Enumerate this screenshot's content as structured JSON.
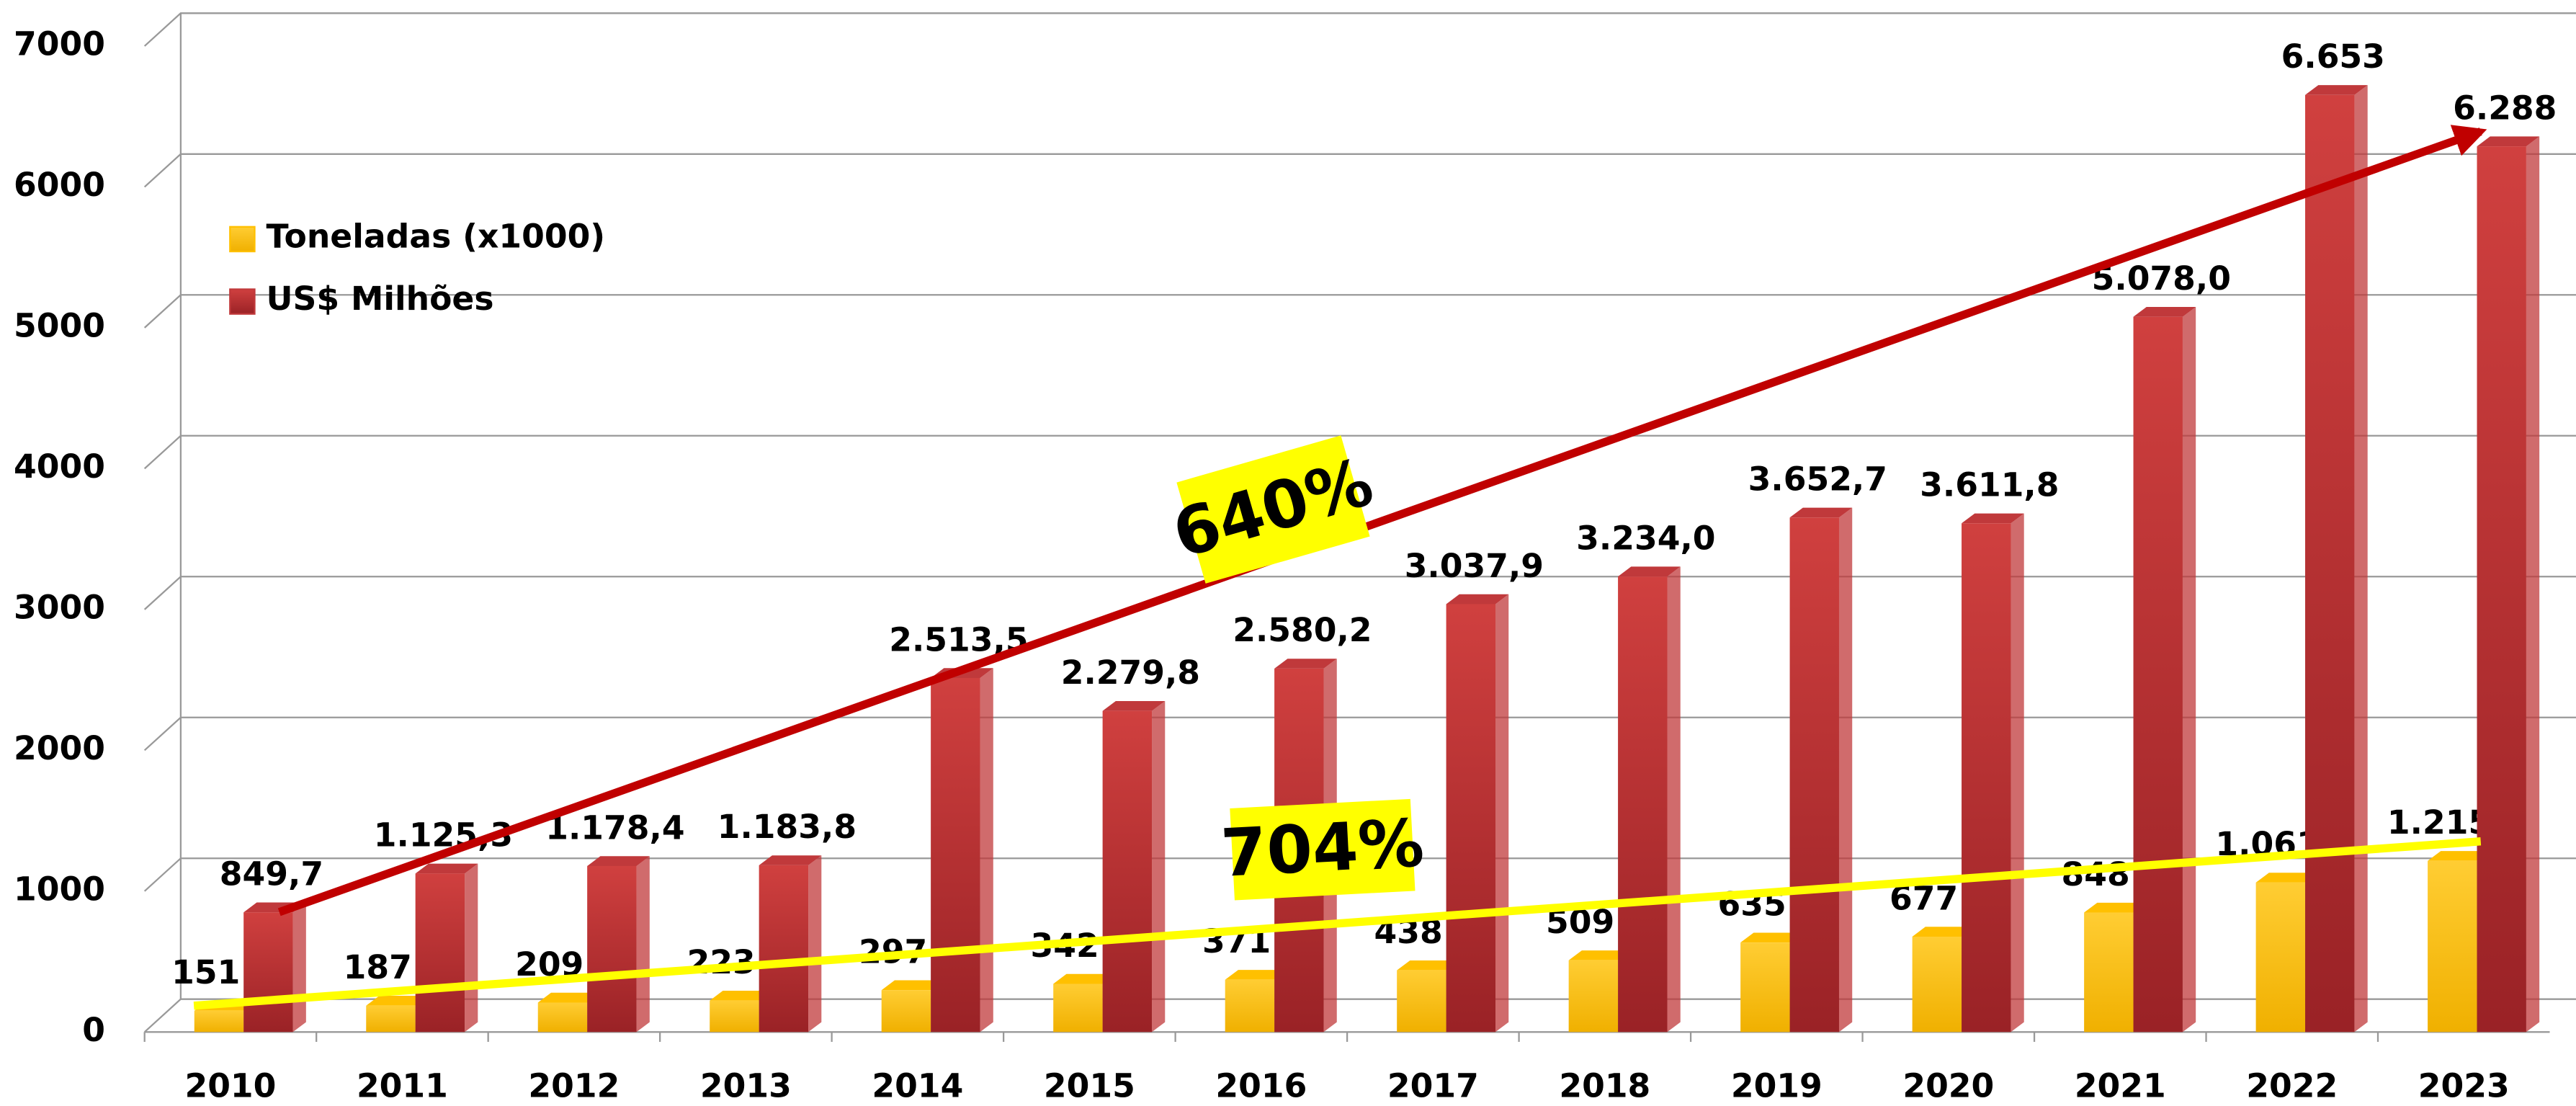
{
  "chart_data": {
    "type": "bar3d",
    "categories": [
      "2010",
      "2011",
      "2012",
      "2013",
      "2014",
      "2015",
      "2016",
      "2017",
      "2018",
      "2019",
      "2020",
      "2021",
      "2022",
      "2023"
    ],
    "series": [
      {
        "name": "Toneladas (x1000)",
        "color": "#ffc000",
        "values": [
          151,
          187,
          209,
          223,
          297,
          342,
          371,
          438,
          509,
          635,
          677,
          848,
          1061,
          1215
        ],
        "value_labels": [
          "151",
          "187",
          "209",
          "223",
          "297",
          "342",
          "371",
          "438",
          "509",
          "635",
          "677",
          "848",
          "1.061",
          "1.215"
        ]
      },
      {
        "name": "US$ Milhões",
        "color": "#c0393b",
        "values": [
          849.7,
          1125.3,
          1178.4,
          1183.8,
          2513.5,
          2279.8,
          2580.2,
          3037.9,
          3234.0,
          3652.7,
          3611.8,
          5078.0,
          6653,
          6288
        ],
        "value_labels": [
          "849,7",
          "1.125,3",
          "1.178,4",
          "1.183,8",
          "2.513,5",
          "2.279,8",
          "2.580,2",
          "3.037,9",
          "3.234,0",
          "3.652,7",
          "3.611,8",
          "5.078,0",
          "6.653",
          "6.288"
        ]
      }
    ],
    "ylim": [
      0,
      7000
    ],
    "yticks": [
      0,
      1000,
      2000,
      3000,
      4000,
      5000,
      6000,
      7000
    ],
    "grid": true,
    "annotations": [
      "640%",
      "704%"
    ]
  }
}
